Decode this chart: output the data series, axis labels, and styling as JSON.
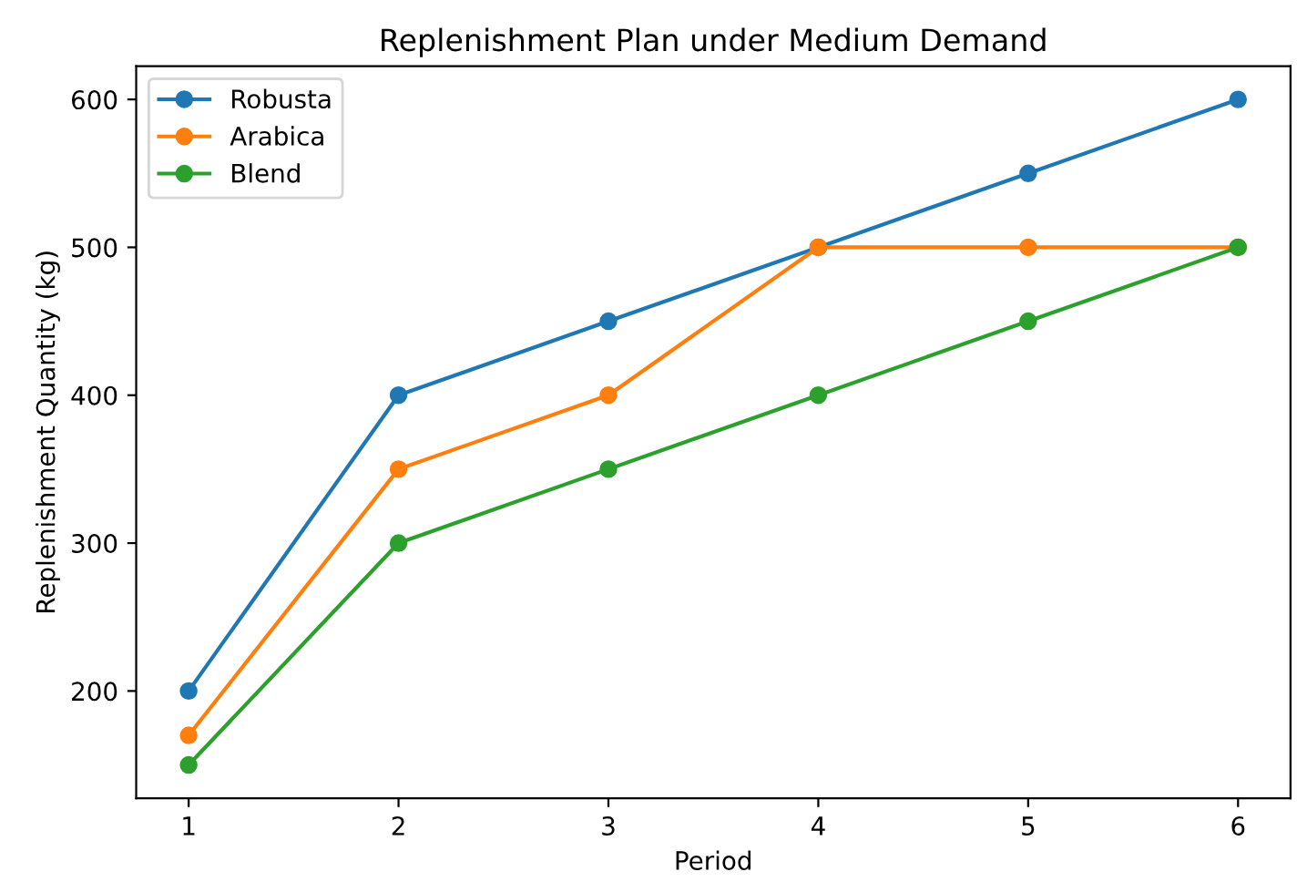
{
  "chart_data": {
    "type": "line",
    "title": "Replenishment Plan under Medium Demand",
    "xlabel": "Period",
    "ylabel": "Replenishment Quantity (kg)",
    "x": [
      1,
      2,
      3,
      4,
      5,
      6
    ],
    "series": [
      {
        "name": "Robusta",
        "color": "#1f77b4",
        "values": [
          200,
          400,
          450,
          500,
          550,
          600
        ]
      },
      {
        "name": "Arabica",
        "color": "#ff7f0e",
        "values": [
          170,
          350,
          400,
          500,
          500,
          500
        ]
      },
      {
        "name": "Blend",
        "color": "#2ca02c",
        "values": [
          150,
          300,
          350,
          400,
          450,
          500
        ]
      }
    ],
    "xlim": [
      0.75,
      6.25
    ],
    "xticks": [
      1,
      2,
      3,
      4,
      5,
      6
    ],
    "ylim": [
      127.5,
      622.5
    ],
    "yticks": [
      200,
      300,
      400,
      500,
      600
    ],
    "marker": "circle",
    "line_style": "solid",
    "legend": "top left",
    "grid": false
  }
}
